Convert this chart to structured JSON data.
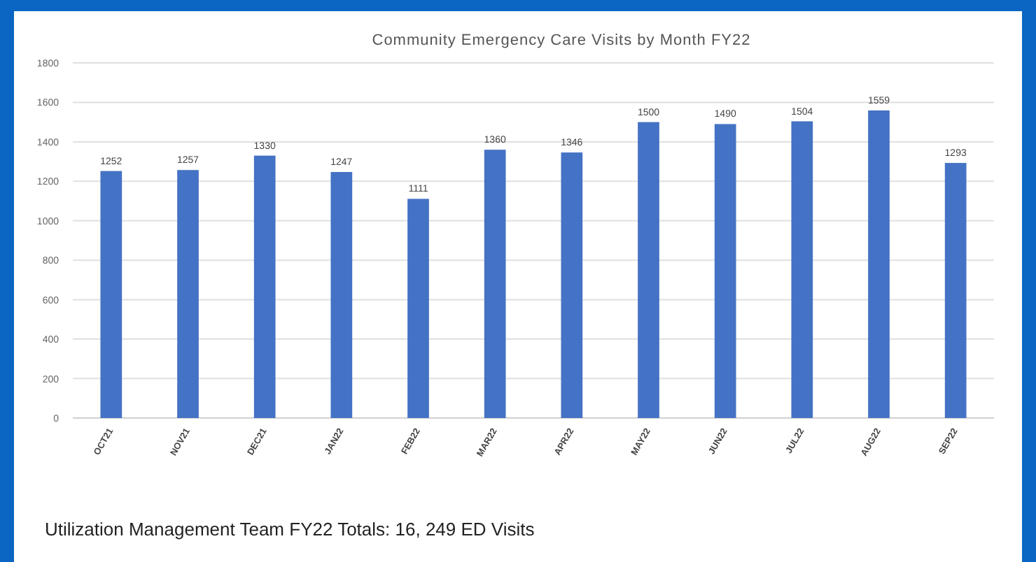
{
  "chart_data": {
    "type": "bar",
    "title": "Community Emergency Care Visits by Month FY22",
    "categories": [
      "OCT21",
      "NOV21",
      "DEC21",
      "JAN22",
      "FEB22",
      "MAR22",
      "APR22",
      "MAY22",
      "JUN22",
      "JUL22",
      "AUG22",
      "SEP22"
    ],
    "values": [
      1252,
      1257,
      1330,
      1247,
      1111,
      1360,
      1346,
      1500,
      1490,
      1504,
      1559,
      1293
    ],
    "color": "#4472c4",
    "ylim": [
      0,
      1800
    ],
    "yticks": [
      0,
      200,
      400,
      600,
      800,
      1000,
      1200,
      1400,
      1600,
      1800
    ],
    "grid": "y",
    "data_labels": true,
    "annotations": [
      "Utilization Management Team FY22 Totals: 16, 249 ED Visits"
    ]
  }
}
